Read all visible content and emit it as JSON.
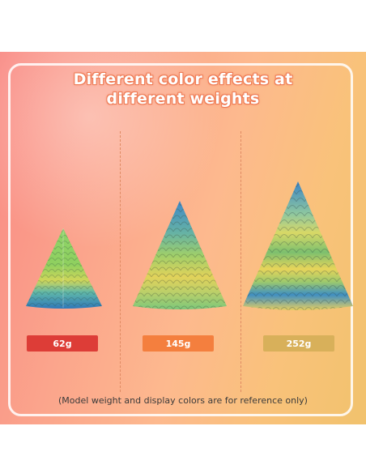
{
  "heading": {
    "line1": "Different color effects at",
    "line2": "different weights"
  },
  "models": [
    {
      "weight": "62g",
      "label_color": "#dd3d37"
    },
    {
      "weight": "145g",
      "label_color": "#f47f3e"
    },
    {
      "weight": "252g",
      "label_color": "#d8b05a"
    }
  ],
  "footnote": "(Model weight and display colors are for reference only)",
  "colors": {
    "background_start": "#f98a84",
    "background_end": "#f1c26d",
    "title_outline": "#ee7e58"
  }
}
